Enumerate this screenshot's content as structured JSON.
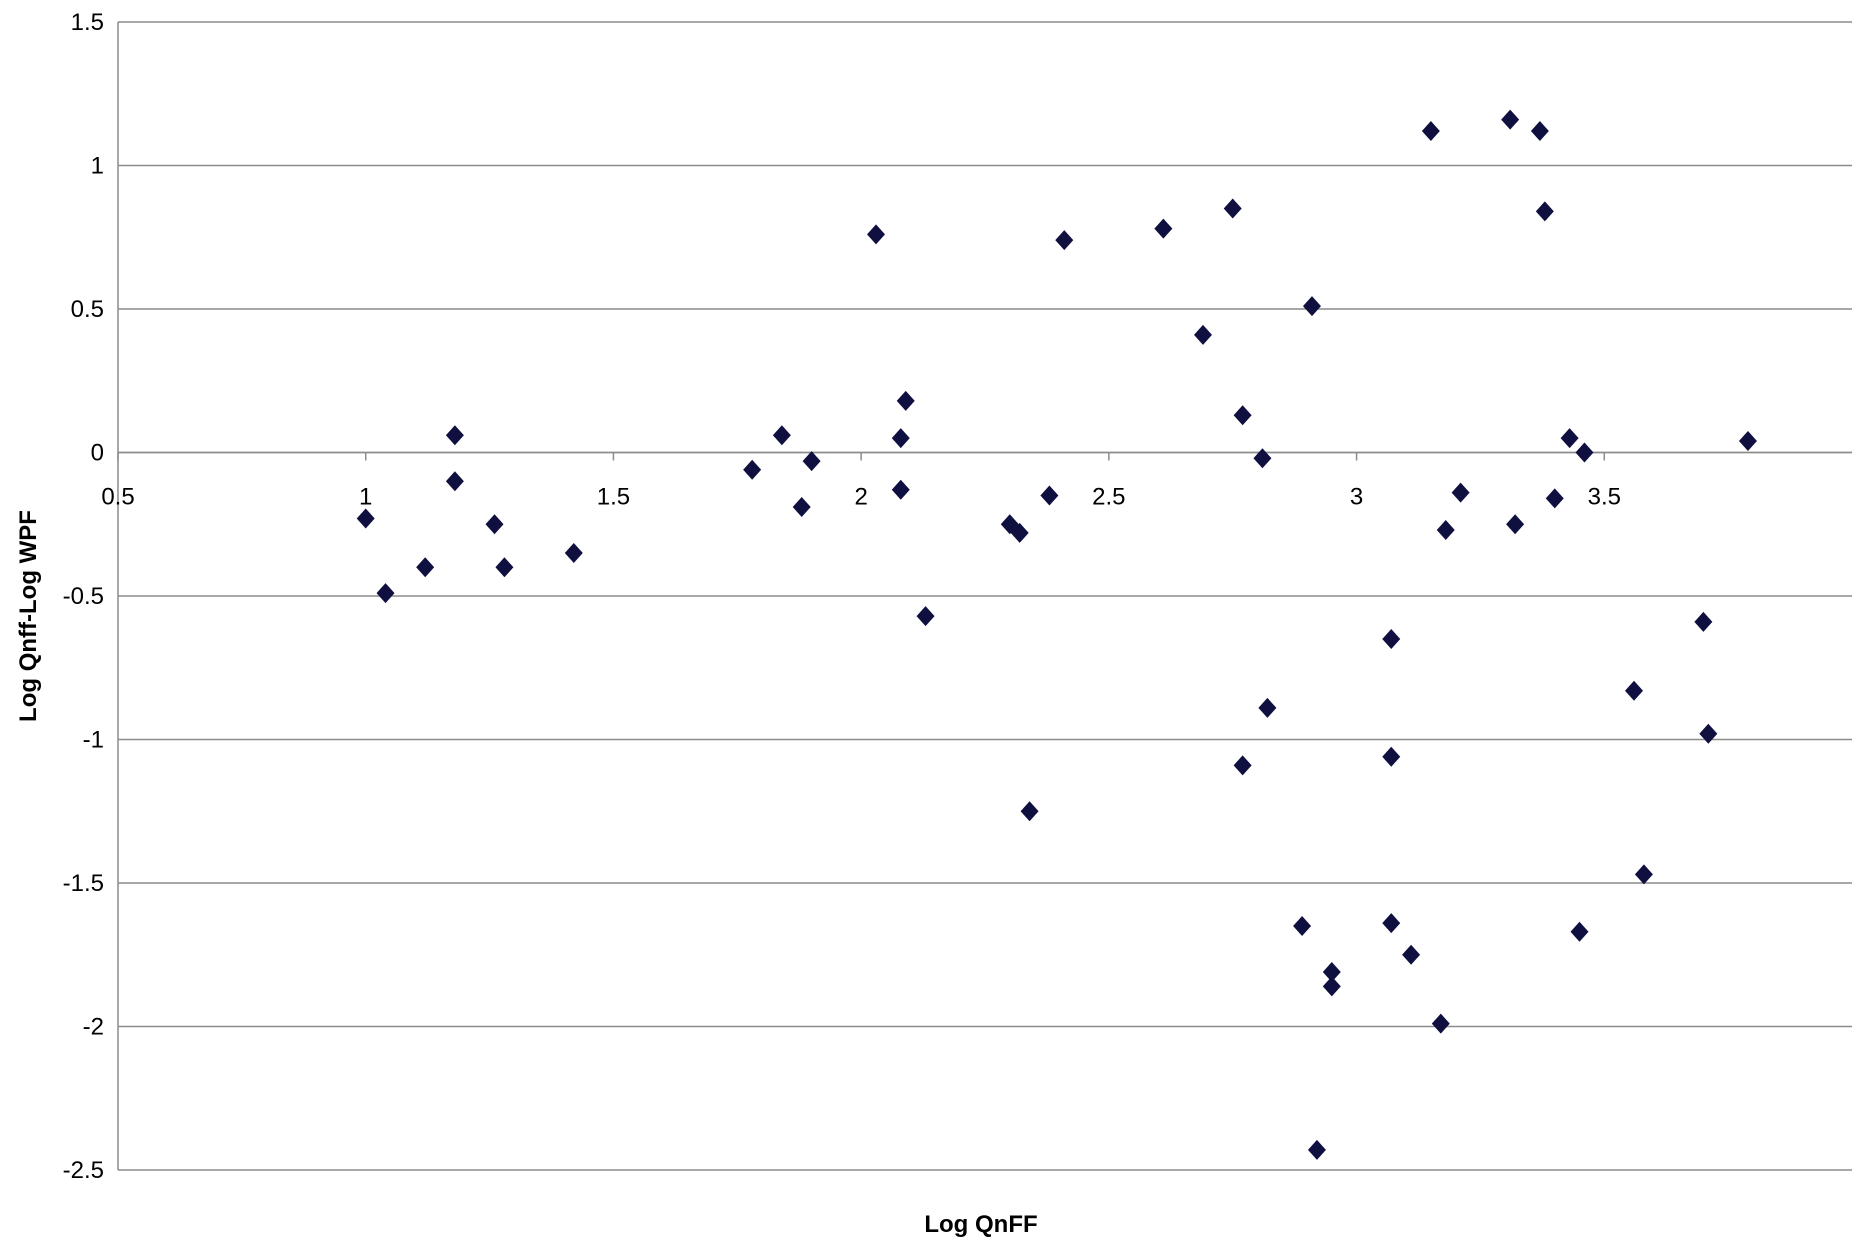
{
  "chart_data": {
    "type": "scatter",
    "xlabel": "Log QnFF",
    "ylabel": "Log Qnff-Log WPF",
    "xlim": [
      0.5,
      4.0
    ],
    "ylim": [
      -2.5,
      1.5
    ],
    "x_ticks": [
      "0.5",
      "1",
      "1.5",
      "2",
      "2.5",
      "3",
      "3.5"
    ],
    "y_ticks": [
      "1.5",
      "1",
      "0.5",
      "0",
      "-0.5",
      "-1",
      "-1.5",
      "-2",
      "-2.5"
    ],
    "grid": "horizontal",
    "legend": "none",
    "marker": "diamond",
    "marker_color": "#101040",
    "series": [
      {
        "points": [
          [
            1.0,
            -0.23
          ],
          [
            1.04,
            -0.49
          ],
          [
            1.12,
            -0.4
          ],
          [
            1.18,
            0.06
          ],
          [
            1.18,
            -0.1
          ],
          [
            1.26,
            -0.25
          ],
          [
            1.28,
            -0.4
          ],
          [
            1.42,
            -0.35
          ],
          [
            1.78,
            -0.06
          ],
          [
            1.84,
            0.06
          ],
          [
            1.88,
            -0.19
          ],
          [
            1.9,
            -0.03
          ],
          [
            2.03,
            0.76
          ],
          [
            2.09,
            0.18
          ],
          [
            2.08,
            0.05
          ],
          [
            2.08,
            -0.13
          ],
          [
            2.13,
            -0.57
          ],
          [
            2.3,
            -0.25
          ],
          [
            2.32,
            -0.28
          ],
          [
            2.34,
            -1.25
          ],
          [
            2.38,
            -0.15
          ],
          [
            2.41,
            0.74
          ],
          [
            2.61,
            0.78
          ],
          [
            2.69,
            0.41
          ],
          [
            2.75,
            0.85
          ],
          [
            2.77,
            0.13
          ],
          [
            2.77,
            -1.09
          ],
          [
            2.81,
            -0.02
          ],
          [
            2.82,
            -0.89
          ],
          [
            2.91,
            0.51
          ],
          [
            2.89,
            -1.65
          ],
          [
            2.92,
            -2.43
          ],
          [
            2.95,
            -1.81
          ],
          [
            2.95,
            -1.86
          ],
          [
            3.07,
            -0.65
          ],
          [
            3.07,
            -1.06
          ],
          [
            3.07,
            -1.64
          ],
          [
            3.11,
            -1.75
          ],
          [
            3.15,
            1.12
          ],
          [
            3.17,
            -1.99
          ],
          [
            3.18,
            -0.27
          ],
          [
            3.21,
            -0.14
          ],
          [
            3.31,
            1.16
          ],
          [
            3.32,
            -0.25
          ],
          [
            3.37,
            1.12
          ],
          [
            3.38,
            0.84
          ],
          [
            3.4,
            -0.16
          ],
          [
            3.43,
            0.05
          ],
          [
            3.46,
            0.0
          ],
          [
            3.45,
            -1.67
          ],
          [
            3.56,
            -0.83
          ],
          [
            3.58,
            -1.47
          ],
          [
            3.7,
            -0.59
          ],
          [
            3.71,
            -0.98
          ],
          [
            3.79,
            0.04
          ]
        ]
      }
    ]
  }
}
